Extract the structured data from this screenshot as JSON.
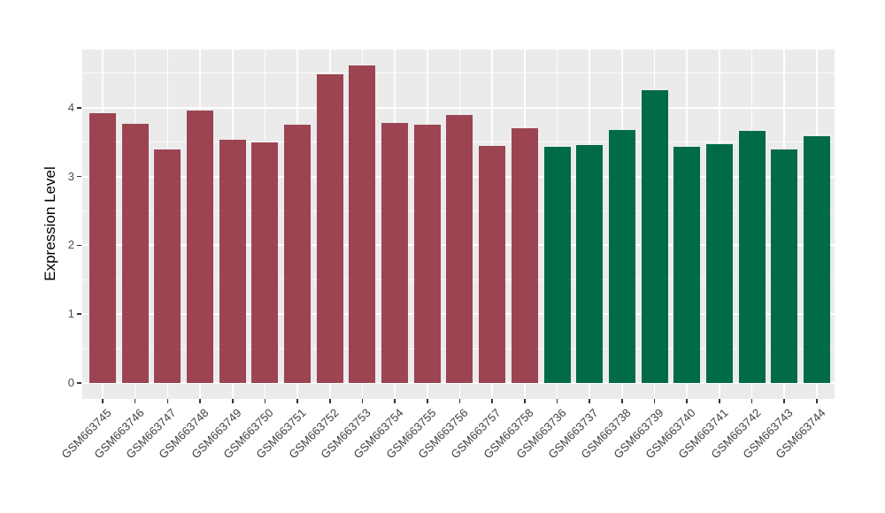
{
  "chart_data": {
    "type": "bar",
    "title": "",
    "xlabel": "",
    "ylabel": "Expression Level",
    "categories": [
      "GSM663745",
      "GSM663746",
      "GSM663747",
      "GSM663748",
      "GSM663749",
      "GSM663750",
      "GSM663751",
      "GSM663752",
      "GSM663753",
      "GSM663754",
      "GSM663755",
      "GSM663756",
      "GSM663757",
      "GSM663758",
      "GSM663736",
      "GSM663737",
      "GSM663738",
      "GSM663739",
      "GSM663740",
      "GSM663741",
      "GSM663742",
      "GSM663743",
      "GSM663744"
    ],
    "values": [
      3.92,
      3.77,
      3.39,
      3.96,
      3.53,
      3.49,
      3.75,
      4.49,
      4.61,
      3.78,
      3.75,
      3.9,
      3.45,
      3.7,
      3.43,
      3.46,
      3.68,
      4.26,
      3.43,
      3.47,
      3.66,
      3.39,
      3.58
    ],
    "group_index": [
      0,
      0,
      0,
      0,
      0,
      0,
      0,
      0,
      0,
      0,
      0,
      0,
      0,
      0,
      1,
      1,
      1,
      1,
      1,
      1,
      1,
      1,
      1
    ],
    "group_colors": [
      "#9C4451",
      "#006A49"
    ],
    "yticks": [
      0,
      1,
      2,
      3,
      4
    ],
    "ytick_labels": [
      "0",
      "1",
      "2",
      "3",
      "4"
    ],
    "minor_ticks": [
      0.5,
      1.5,
      2.5,
      3.5,
      4.5
    ],
    "ylim": [
      -0.23,
      4.85
    ],
    "grid": true,
    "legend": "none",
    "panel_background": "#EBEBEB",
    "gridline_color": "#FFFFFF",
    "axis_text_color": "#4D4D4D",
    "tick_mark_color": "#333333",
    "x_tick_angle": 45
  }
}
